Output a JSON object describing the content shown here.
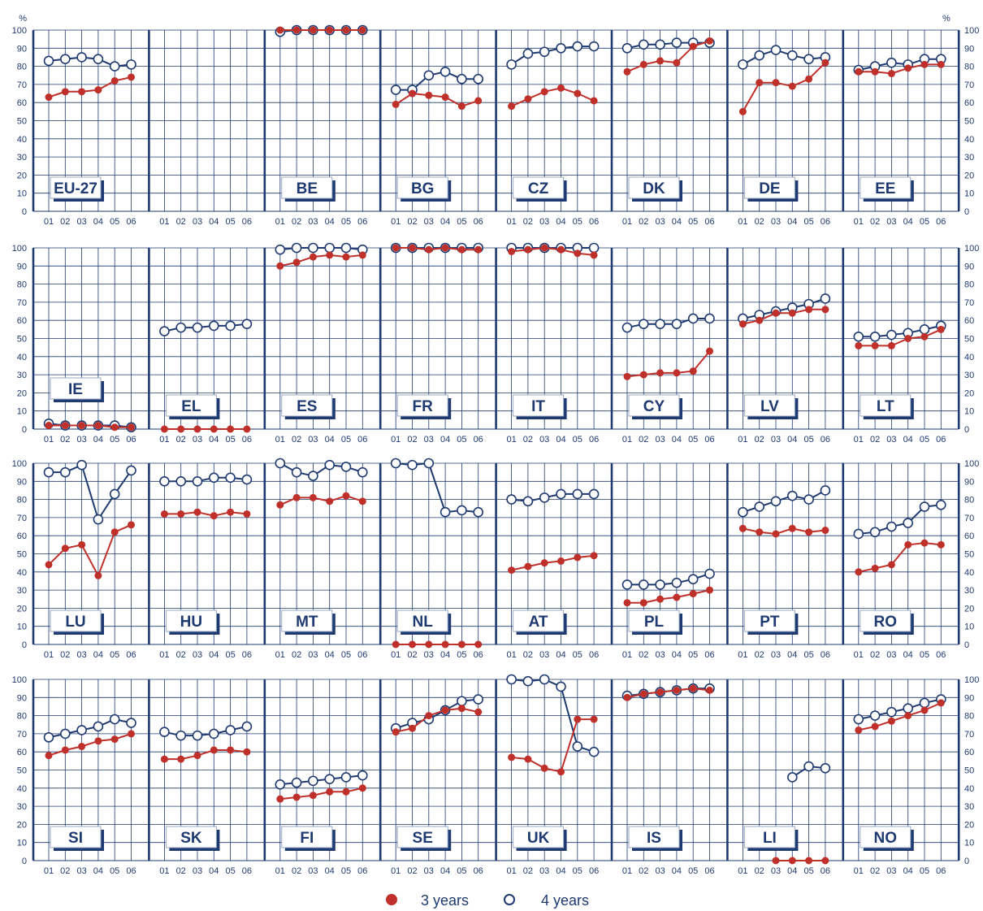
{
  "chart_data": {
    "type": "line",
    "unit_label": "%",
    "x_ticks": [
      "01",
      "02",
      "03",
      "04",
      "05",
      "06"
    ],
    "y_ticks": [
      "0",
      "10",
      "20",
      "30",
      "40",
      "50",
      "60",
      "70",
      "80",
      "90",
      "100"
    ],
    "ylim": [
      0,
      100
    ],
    "grid": true,
    "legend_position": "bottom-center",
    "legend": [
      {
        "name": "3 years",
        "marker": "filled-dot",
        "color": "#c0302a"
      },
      {
        "name": "4 years",
        "marker": "open-circle",
        "color": "#1f3a70"
      }
    ],
    "colors": {
      "series_3y": "#c0302a",
      "series_4y": "#1f3a70",
      "grid": "#1f3a70"
    },
    "panels": [
      {
        "code": "EU-27",
        "label_pos": "low",
        "y3": [
          63,
          66,
          66,
          67,
          72,
          74
        ],
        "y4": [
          83,
          84,
          85,
          84,
          80,
          81
        ]
      },
      {
        "code": "",
        "label_pos": "none",
        "y3": [
          null,
          null,
          null,
          null,
          null,
          null
        ],
        "y4": [
          null,
          null,
          null,
          null,
          null,
          null
        ]
      },
      {
        "code": "BE",
        "label_pos": "low",
        "y3": [
          100,
          100,
          100,
          100,
          100,
          100
        ],
        "y4": [
          99,
          100,
          100,
          100,
          100,
          100
        ]
      },
      {
        "code": "BG",
        "label_pos": "low",
        "y3": [
          59,
          65,
          64,
          63,
          58,
          61
        ],
        "y4": [
          67,
          67,
          75,
          77,
          73,
          73
        ]
      },
      {
        "code": "CZ",
        "label_pos": "low",
        "y3": [
          58,
          62,
          66,
          68,
          65,
          61
        ],
        "y4": [
          81,
          87,
          88,
          90,
          91,
          91
        ]
      },
      {
        "code": "DK",
        "label_pos": "low",
        "y3": [
          77,
          81,
          83,
          82,
          91,
          94
        ],
        "y4": [
          90,
          92,
          92,
          93,
          93,
          93
        ]
      },
      {
        "code": "DE",
        "label_pos": "low",
        "y3": [
          55,
          71,
          71,
          69,
          73,
          82
        ],
        "y4": [
          81,
          86,
          89,
          86,
          84,
          85
        ]
      },
      {
        "code": "EE",
        "label_pos": "low",
        "y3": [
          77,
          77,
          76,
          79,
          81,
          81
        ],
        "y4": [
          78,
          80,
          82,
          81,
          84,
          84
        ]
      },
      {
        "code": "IE",
        "label_pos": "mid",
        "y3": [
          2,
          2,
          2,
          2,
          1,
          1
        ],
        "y4": [
          3,
          2,
          2,
          2,
          2,
          1
        ]
      },
      {
        "code": "EL",
        "label_pos": "low",
        "y3": [
          0,
          0,
          0,
          0,
          0,
          0
        ],
        "y4": [
          54,
          56,
          56,
          57,
          57,
          58
        ]
      },
      {
        "code": "ES",
        "label_pos": "low",
        "y3": [
          90,
          92,
          95,
          96,
          95,
          96
        ],
        "y4": [
          99,
          100,
          100,
          100,
          100,
          99
        ]
      },
      {
        "code": "FR",
        "label_pos": "low",
        "y3": [
          100,
          100,
          99,
          100,
          99,
          99
        ],
        "y4": [
          100,
          100,
          100,
          100,
          100,
          100
        ]
      },
      {
        "code": "IT",
        "label_pos": "low",
        "y3": [
          98,
          99,
          100,
          99,
          97,
          96
        ],
        "y4": [
          100,
          100,
          100,
          100,
          100,
          100
        ]
      },
      {
        "code": "CY",
        "label_pos": "low",
        "y3": [
          29,
          30,
          31,
          31,
          32,
          43
        ],
        "y4": [
          56,
          58,
          58,
          58,
          61,
          61
        ]
      },
      {
        "code": "LV",
        "label_pos": "low",
        "y3": [
          58,
          60,
          64,
          64,
          66,
          66
        ],
        "y4": [
          61,
          63,
          65,
          67,
          69,
          72
        ]
      },
      {
        "code": "LT",
        "label_pos": "low",
        "y3": [
          46,
          46,
          46,
          50,
          51,
          55
        ],
        "y4": [
          51,
          51,
          52,
          53,
          55,
          57
        ]
      },
      {
        "code": "LU",
        "label_pos": "low",
        "y3": [
          44,
          53,
          55,
          38,
          62,
          66
        ],
        "y4": [
          95,
          95,
          99,
          69,
          83,
          96
        ]
      },
      {
        "code": "HU",
        "label_pos": "low",
        "y3": [
          72,
          72,
          73,
          71,
          73,
          72
        ],
        "y4": [
          90,
          90,
          90,
          92,
          92,
          91
        ]
      },
      {
        "code": "MT",
        "label_pos": "low",
        "y3": [
          77,
          81,
          81,
          79,
          82,
          79
        ],
        "y4": [
          100,
          95,
          93,
          99,
          98,
          95
        ]
      },
      {
        "code": "NL",
        "label_pos": "low",
        "y3": [
          0,
          0,
          0,
          0,
          0,
          0
        ],
        "y4": [
          100,
          99,
          100,
          73,
          74,
          73
        ]
      },
      {
        "code": "AT",
        "label_pos": "low",
        "y3": [
          41,
          43,
          45,
          46,
          48,
          49
        ],
        "y4": [
          80,
          79,
          81,
          83,
          83,
          83
        ]
      },
      {
        "code": "PL",
        "label_pos": "low",
        "y3": [
          23,
          23,
          25,
          26,
          28,
          30
        ],
        "y4": [
          33,
          33,
          33,
          34,
          36,
          39
        ]
      },
      {
        "code": "PT",
        "label_pos": "low",
        "y3": [
          64,
          62,
          61,
          64,
          62,
          63
        ],
        "y4": [
          73,
          76,
          79,
          82,
          80,
          85
        ]
      },
      {
        "code": "RO",
        "label_pos": "low",
        "y3": [
          40,
          42,
          44,
          55,
          56,
          55
        ],
        "y4": [
          61,
          62,
          65,
          67,
          76,
          77
        ]
      },
      {
        "code": "SI",
        "label_pos": "low",
        "y3": [
          58,
          61,
          63,
          66,
          67,
          70
        ],
        "y4": [
          68,
          70,
          72,
          74,
          78,
          76
        ]
      },
      {
        "code": "SK",
        "label_pos": "low",
        "y3": [
          56,
          56,
          58,
          61,
          61,
          60
        ],
        "y4": [
          71,
          69,
          69,
          70,
          72,
          74
        ]
      },
      {
        "code": "FI",
        "label_pos": "low",
        "y3": [
          34,
          35,
          36,
          38,
          38,
          40
        ],
        "y4": [
          42,
          43,
          44,
          45,
          46,
          47
        ]
      },
      {
        "code": "SE",
        "label_pos": "low",
        "y3": [
          71,
          73,
          80,
          83,
          84,
          82
        ],
        "y4": [
          73,
          76,
          78,
          83,
          88,
          89
        ]
      },
      {
        "code": "UK",
        "label_pos": "low",
        "y3": [
          57,
          56,
          51,
          49,
          78,
          78
        ],
        "y4": [
          100,
          99,
          100,
          96,
          63,
          60
        ]
      },
      {
        "code": "IS",
        "label_pos": "low",
        "y3": [
          90,
          92,
          93,
          94,
          95,
          94
        ],
        "y4": [
          91,
          92,
          93,
          94,
          95,
          95
        ]
      },
      {
        "code": "LI",
        "label_pos": "low",
        "y3": [
          null,
          null,
          0,
          0,
          0,
          0
        ],
        "y4": [
          null,
          null,
          null,
          46,
          52,
          51
        ]
      },
      {
        "code": "NO",
        "label_pos": "low",
        "y3": [
          72,
          74,
          77,
          80,
          83,
          87
        ],
        "y4": [
          78,
          80,
          82,
          84,
          87,
          89
        ]
      }
    ]
  }
}
